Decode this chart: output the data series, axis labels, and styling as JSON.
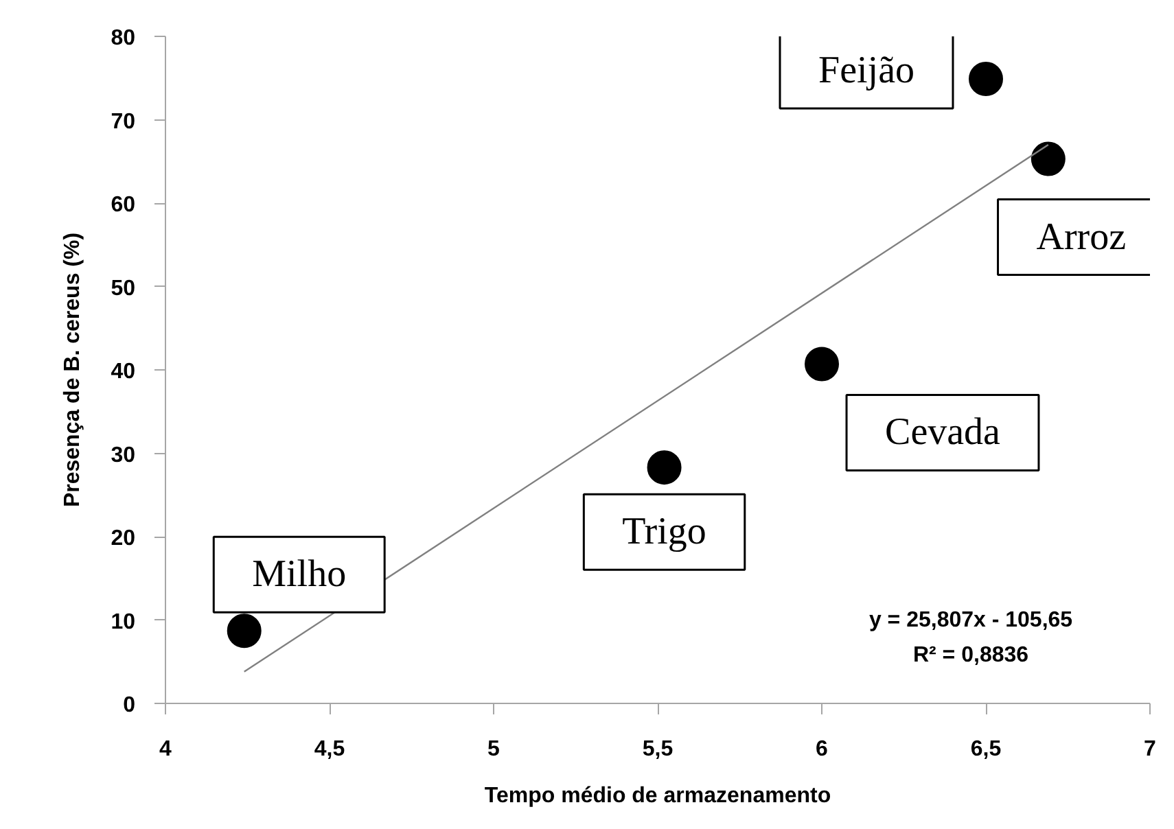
{
  "chart_data": {
    "type": "scatter",
    "xlabel": "Tempo médio de armazenamento",
    "ylabel": "Presença de B. cereus (%)",
    "xlim": [
      4,
      7
    ],
    "xticks": [
      4,
      {
        "value": 4.5,
        "label": "4,5"
      },
      5,
      {
        "value": 5.5,
        "label": "5,5"
      },
      6,
      {
        "value": 6.5,
        "label": "6,5"
      },
      7
    ],
    "ylim": [
      0,
      80
    ],
    "yticks": [
      0,
      10,
      20,
      30,
      40,
      50,
      60,
      70,
      80
    ],
    "grid": false,
    "series": [
      {
        "color": "#000000",
        "marker": "circle",
        "x": [
          4.24,
          5.52,
          6.0,
          6.5,
          6.69
        ],
        "values": [
          8.7,
          28.3,
          40.7,
          74.9,
          65.3
        ]
      },
      {
        "type": "line",
        "color": "#808080",
        "x": [
          4.24,
          6.69
        ],
        "values": [
          3.8,
          67.0
        ]
      }
    ],
    "annotations": [
      {
        "text": "Milho",
        "x": 4.24,
        "y": 8.7
      },
      {
        "text": "Trigo",
        "x": 5.52,
        "y": 28.3
      },
      {
        "text": "Cevada",
        "x": 6.0,
        "y": 40.7
      },
      {
        "text": "Feijão",
        "x": 6.5,
        "y": 74.9
      },
      {
        "text": "Arroz",
        "x": 6.69,
        "y": 65.3
      },
      "y = 25,807x - 105,65",
      "R² = 0,8836"
    ]
  }
}
